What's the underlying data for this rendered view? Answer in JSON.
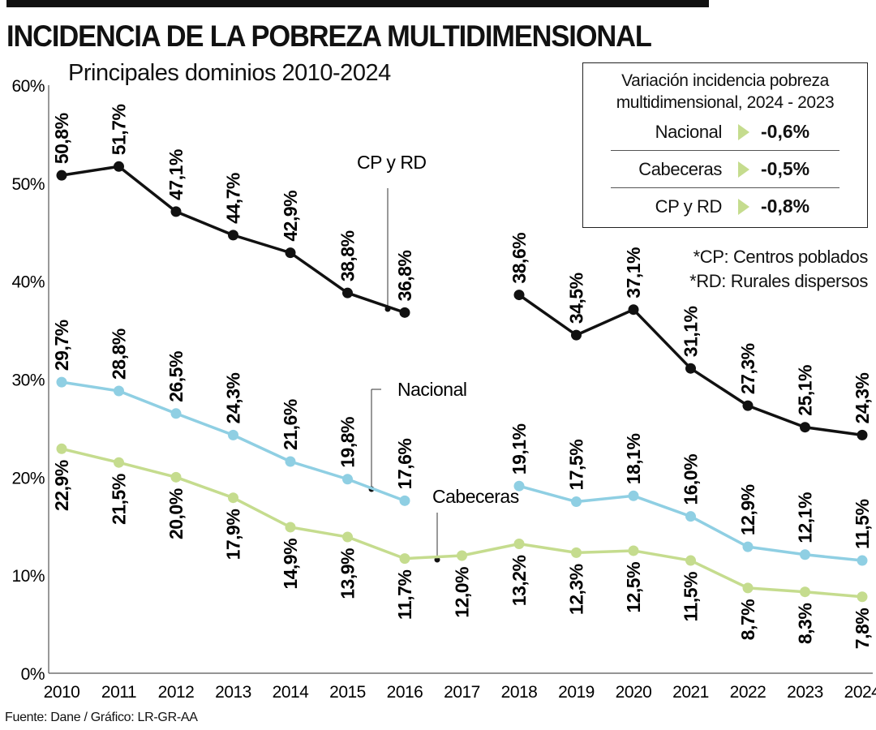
{
  "header": {
    "title": "INCIDENCIA DE LA POBREZA MULTIDIMENSIONAL",
    "subtitle": "Principales dominios 2010-2024"
  },
  "variation_box": {
    "title_line1": "Variación incidencia pobreza",
    "title_line2": "multidimensional, 2024 - 2023",
    "rows": [
      {
        "label": "Nacional",
        "value": "-0,6%"
      },
      {
        "label": "Cabeceras",
        "value": "-0,5%"
      },
      {
        "label": "CP y RD",
        "value": "-0,8%"
      }
    ],
    "marker_color": "#c5dc8e"
  },
  "notes": [
    "*CP: Centros poblados",
    "*RD: Rurales dispersos"
  ],
  "source": "Fuente: Dane / Gráfico: LR-GR-AA",
  "chart_data": {
    "type": "line",
    "categories": [
      "2010",
      "2011",
      "2012",
      "2013",
      "2014",
      "2015",
      "2016",
      "2017",
      "2018",
      "2019",
      "2020",
      "2021",
      "2022",
      "2023",
      "2024"
    ],
    "ylim": [
      0,
      60
    ],
    "yticks": [
      "0%",
      "10%",
      "20%",
      "30%",
      "40%",
      "50%",
      "60%"
    ],
    "grid": false,
    "series": [
      {
        "name": "CP y RD",
        "color": "#111111",
        "label_pos": "above",
        "values": [
          50.8,
          51.7,
          47.1,
          44.7,
          42.9,
          38.8,
          36.8,
          null,
          38.6,
          34.5,
          37.1,
          31.1,
          27.3,
          25.1,
          24.3
        ],
        "labels": [
          "50,8%",
          "51,7%",
          "47,1%",
          "44,7%",
          "42,9%",
          "38,8%",
          "36,8%",
          null,
          "38,6%",
          "34,5%",
          "37,1%",
          "31,1%",
          "27,3%",
          "25,1%",
          "24,3%"
        ]
      },
      {
        "name": "Nacional",
        "color": "#8fcfe3",
        "label_pos": "above",
        "values": [
          29.7,
          28.8,
          26.5,
          24.3,
          21.6,
          19.8,
          17.6,
          null,
          19.1,
          17.5,
          18.1,
          16.0,
          12.9,
          12.1,
          11.5
        ],
        "labels": [
          "29,7%",
          "28,8%",
          "26,5%",
          "24,3%",
          "21,6%",
          "19,8%",
          "17,6%",
          null,
          "19,1%",
          "17,5%",
          "18,1%",
          "16,0%",
          "12,9%",
          "12,1%",
          "11,5%"
        ]
      },
      {
        "name": "Cabeceras",
        "color": "#c5dc8e",
        "label_pos": "below",
        "values": [
          22.9,
          21.5,
          20.0,
          17.9,
          14.9,
          13.9,
          11.7,
          12.0,
          13.2,
          12.3,
          12.5,
          11.5,
          8.7,
          8.3,
          7.8
        ],
        "labels": [
          "22,9%",
          "21,5%",
          "20,0%",
          "17,9%",
          "14,9%",
          "13,9%",
          "11,7%",
          "12,0%",
          "13,2%",
          "12,3%",
          "12,5%",
          "11,5%",
          "8,7%",
          "8,3%",
          "7,8%"
        ]
      }
    ]
  }
}
